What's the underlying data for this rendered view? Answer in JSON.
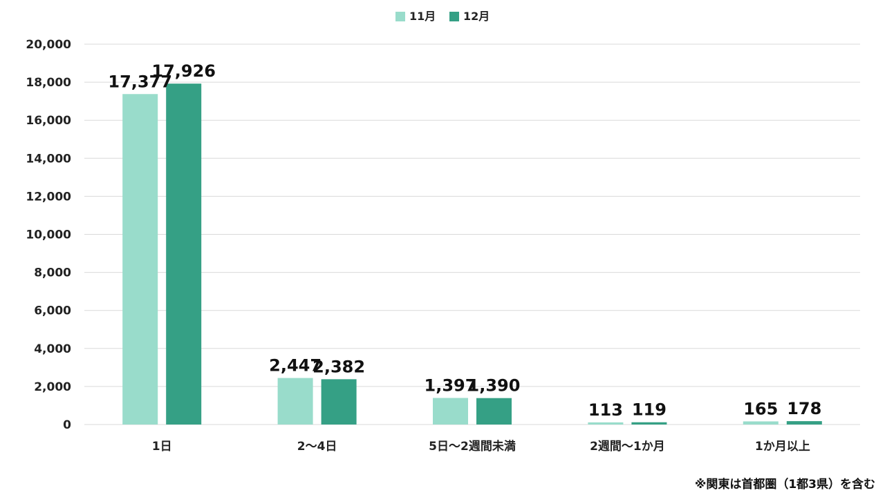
{
  "chart_data": {
    "type": "bar",
    "categories": [
      "1日",
      "2〜4日",
      "5日〜2週間未満",
      "2週間〜1か月",
      "1か月以上"
    ],
    "series": [
      {
        "name": "11月",
        "values": [
          17377,
          2447,
          1397,
          113,
          165
        ],
        "labels": [
          "17,377",
          "2,447",
          "1,397",
          "113",
          "165"
        ],
        "color": "#99dccb"
      },
      {
        "name": "12月",
        "values": [
          17926,
          2382,
          1390,
          119,
          178
        ],
        "labels": [
          "17,926",
          "2,382",
          "1,390",
          "119",
          "178"
        ],
        "color": "#35a085"
      }
    ],
    "ylim": [
      0,
      20000
    ],
    "yticks": [
      0,
      2000,
      4000,
      6000,
      8000,
      10000,
      12000,
      14000,
      16000,
      18000,
      20000
    ],
    "ytick_labels": [
      "0",
      "2,000",
      "4,000",
      "6,000",
      "8,000",
      "10,000",
      "12,000",
      "14,000",
      "16,000",
      "18,000",
      "20,000"
    ],
    "grid": true,
    "legend_position": "top-center",
    "gridline_color": "#d9d9d9"
  },
  "footnote": "※関東は首都圏（1都3県）を含む"
}
